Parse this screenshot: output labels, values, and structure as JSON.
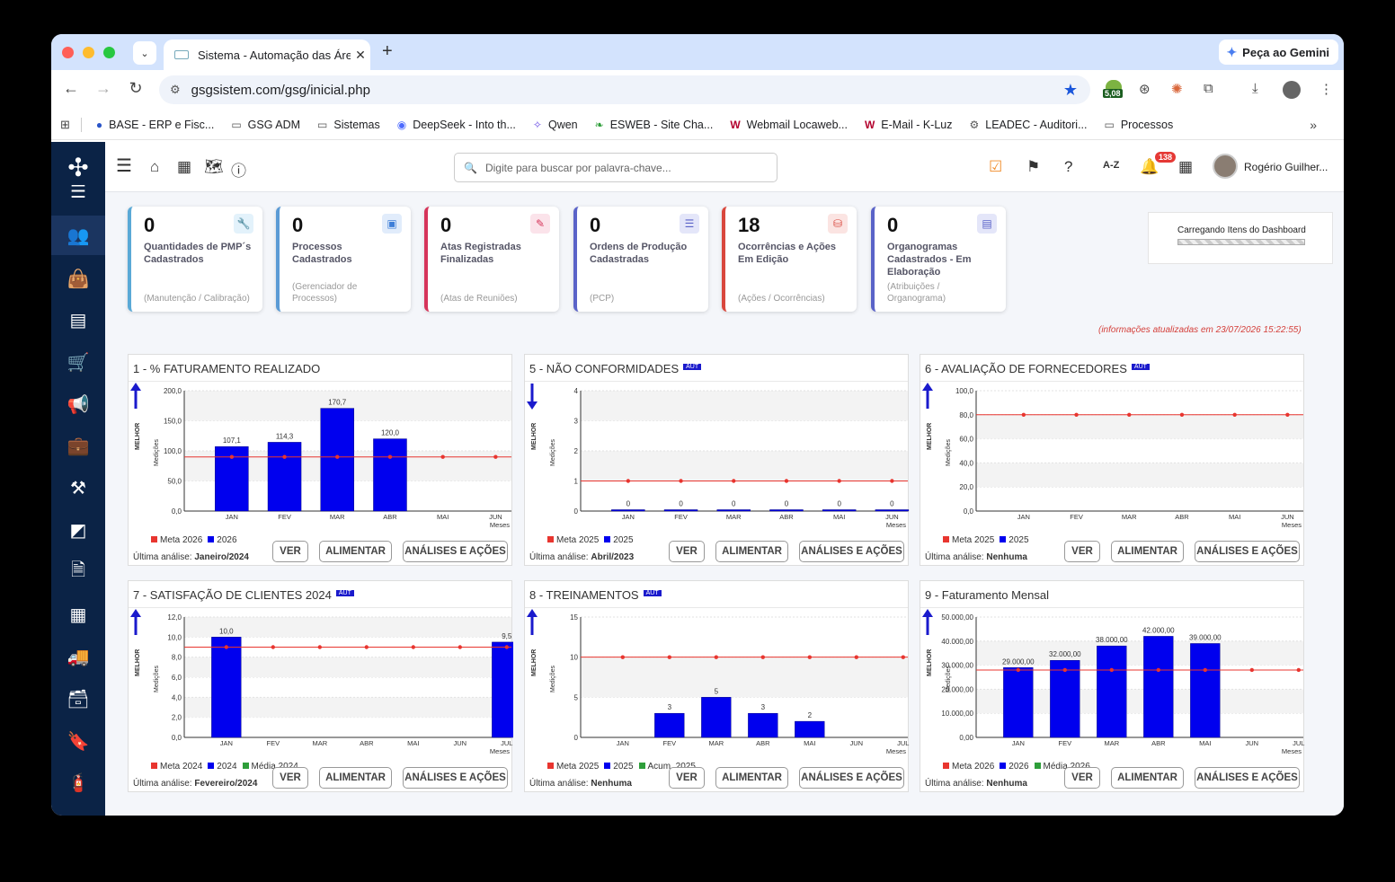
{
  "browser": {
    "tab_title": "Sistema - Automação das Áre",
    "tab_close": "✕",
    "new_tab": "+",
    "gemini_label": "Peça ao Gemini",
    "url": "gsgsistem.com/gsg/inicial.php",
    "ext_badge": "5,08",
    "bookmarks": [
      {
        "label": "BASE - ERP e Fisc...",
        "icon": "base-icon"
      },
      {
        "label": "GSG ADM",
        "icon": "folder-icon"
      },
      {
        "label": "Sistemas",
        "icon": "folder-icon"
      },
      {
        "label": "DeepSeek - Into th...",
        "icon": "deepseek-icon"
      },
      {
        "label": "Qwen",
        "icon": "qwen-icon"
      },
      {
        "label": "ESWEB - Site Cha...",
        "icon": "esweb-icon"
      },
      {
        "label": "Webmail Locaweb...",
        "icon": "w-icon"
      },
      {
        "label": "E-Mail - K-Luz",
        "icon": "w-icon"
      },
      {
        "label": "LEADEC - Auditori...",
        "icon": "gear-icon"
      },
      {
        "label": "Processos",
        "icon": "folder-icon"
      }
    ]
  },
  "header": {
    "search_placeholder": "Digite para buscar por palavra-chave...",
    "az_label": "A-Z",
    "notifications_count": "138",
    "user_name": "Rogério Guilher..."
  },
  "cards": [
    {
      "value": "0",
      "label": "Quantidades de PMP´s Cadastrados",
      "sub": "(Manutenção / Calibração)",
      "color": "#5aa9d6",
      "icon": "wrench-icon",
      "icon_bg": "#e3f2fb",
      "icon_fg": "#4a9fd4"
    },
    {
      "value": "0",
      "label": "Processos Cadastrados",
      "sub": "(Gerenciador de Processos)",
      "color": "#5b9bd5",
      "icon": "archive-icon",
      "icon_bg": "#e1ecfb",
      "icon_fg": "#3f7fd8"
    },
    {
      "value": "0",
      "label": "Atas Registradas Finalizadas",
      "sub": "(Atas de Reuniões)",
      "color": "#d6345a",
      "icon": "edit-icon",
      "icon_bg": "#fbe3ea",
      "icon_fg": "#d6345a"
    },
    {
      "value": "0",
      "label": "Ordens de Produção Cadastradas",
      "sub": "(PCP)",
      "color": "#5a63c8",
      "icon": "database-icon",
      "icon_bg": "#e4e6f9",
      "icon_fg": "#5a63c8"
    },
    {
      "value": "18",
      "label": "Ocorrências e Ações Em Edição",
      "sub": "(Ações / Ocorrências)",
      "color": "#d9473d",
      "icon": "boxes-icon",
      "icon_bg": "#fbe4e2",
      "icon_fg": "#d9473d"
    },
    {
      "value": "0",
      "label": "Organogramas Cadastrados - Em Elaboração",
      "sub": "(Atribuições / Organograma)",
      "color": "#5a63c8",
      "icon": "id-card-icon",
      "icon_bg": "#e4e6f9",
      "icon_fg": "#5a63c8"
    }
  ],
  "loading_text": "Carregando Itens do Dashboard",
  "updated_text": "(informações atualizadas em 23/07/2026 15:22:55)",
  "buttons": {
    "ver": "VER",
    "alimentar": "ALIMENTAR",
    "analises": "ANÁLISES E AÇÕES"
  },
  "legend_words": {
    "best": "MELHOR",
    "measures": "Medições",
    "months": "Meses"
  },
  "panels": [
    {
      "title": "1 - % FATURAMENTO REALIZADO",
      "aut": "",
      "arrow": "up",
      "legend": [
        "Meta 2026",
        "2026"
      ],
      "last_label": "Última análise:",
      "last_value": "Janeiro/2024"
    },
    {
      "title": "5 - NÃO CONFORMIDADES",
      "aut": "AUT",
      "arrow": "down",
      "legend": [
        "Meta 2025",
        "2025"
      ],
      "last_label": "Última análise:",
      "last_value": "Abril/2023"
    },
    {
      "title": "6 - AVALIAÇÃO DE FORNECEDORES",
      "aut": "AUT",
      "arrow": "up",
      "legend": [
        "Meta 2025",
        "2025"
      ],
      "last_label": "Última análise:",
      "last_value": "Nenhuma"
    },
    {
      "title": "7 - SATISFAÇÃO DE CLIENTES 2024",
      "aut": "AUT",
      "arrow": "up",
      "legend": [
        "Meta 2024",
        "2024",
        "Média 2024"
      ],
      "last_label": "Última análise:",
      "last_value": "Fevereiro/2024"
    },
    {
      "title": "8 - TREINAMENTOS",
      "aut": "AUT",
      "arrow": "up",
      "legend": [
        "Meta 2025",
        "2025",
        "Acum. 2025"
      ],
      "last_label": "Última análise:",
      "last_value": "Nenhuma"
    },
    {
      "title": "9 - Faturamento Mensal",
      "aut": "",
      "arrow": "up",
      "legend": [
        "Meta 2026",
        "2026",
        "Média 2026"
      ],
      "last_label": "Última análise:",
      "last_value": "Nenhuma"
    }
  ],
  "chart_data": [
    {
      "type": "bar",
      "categories": [
        "JAN",
        "FEV",
        "MAR",
        "ABR",
        "MAI",
        "JUN"
      ],
      "xlabel": "Meses",
      "ylabel": "Medições",
      "ylim": [
        0,
        200
      ],
      "yticks": [
        "0,0",
        "50,0",
        "100,0",
        "150,0",
        "200,0"
      ],
      "series": [
        {
          "name": "2026",
          "values": [
            107.1,
            114.3,
            170.7,
            120.0,
            null,
            null
          ],
          "labels": [
            "107,1",
            "114,3",
            "170,7",
            "120,0",
            "",
            ""
          ]
        }
      ],
      "meta": 90,
      "grid": true
    },
    {
      "type": "bar",
      "categories": [
        "JAN",
        "FEV",
        "MAR",
        "ABR",
        "MAI",
        "JUN"
      ],
      "xlabel": "Meses",
      "ylabel": "Medições",
      "ylim": [
        0,
        4
      ],
      "yticks": [
        "0",
        "1",
        "2",
        "3",
        "4"
      ],
      "series": [
        {
          "name": "2025",
          "values": [
            0,
            0,
            0,
            0,
            0,
            0
          ],
          "labels": [
            "0",
            "0",
            "0",
            "0",
            "0",
            "0"
          ]
        }
      ],
      "meta": 1,
      "grid": true
    },
    {
      "type": "bar",
      "categories": [
        "JAN",
        "FEV",
        "MAR",
        "ABR",
        "MAI",
        "JUN"
      ],
      "xlabel": "Meses",
      "ylabel": "Medições",
      "ylim": [
        0,
        100
      ],
      "yticks": [
        "0,0",
        "20,0",
        "40,0",
        "60,0",
        "80,0",
        "100,0"
      ],
      "series": [
        {
          "name": "2025",
          "values": [
            null,
            null,
            null,
            null,
            null,
            null
          ],
          "labels": [
            "",
            "",
            "",
            "",
            "",
            ""
          ]
        }
      ],
      "meta": 80,
      "grid": true
    },
    {
      "type": "bar",
      "categories": [
        "JAN",
        "FEV",
        "MAR",
        "ABR",
        "MAI",
        "JUN",
        "JUL"
      ],
      "xlabel": "Meses",
      "ylabel": "Medições",
      "ylim": [
        0,
        12
      ],
      "yticks": [
        "0,0",
        "2,0",
        "4,0",
        "6,0",
        "8,0",
        "10,0",
        "12,0"
      ],
      "series": [
        {
          "name": "2024",
          "values": [
            10.0,
            null,
            null,
            null,
            null,
            null,
            9.5
          ],
          "labels": [
            "10,0",
            "",
            "",
            "",
            "",
            "",
            "9,5"
          ]
        }
      ],
      "meta": 9,
      "grid": true
    },
    {
      "type": "bar",
      "categories": [
        "JAN",
        "FEV",
        "MAR",
        "ABR",
        "MAI",
        "JUN",
        "JUL"
      ],
      "xlabel": "Meses",
      "ylabel": "Medições",
      "ylim": [
        0,
        15
      ],
      "yticks": [
        "0",
        "5",
        "10",
        "15"
      ],
      "series": [
        {
          "name": "2025",
          "values": [
            null,
            3,
            5,
            3,
            2,
            null,
            null
          ],
          "labels": [
            "",
            "3",
            "5",
            "3",
            "2",
            "",
            ""
          ]
        }
      ],
      "meta": 10,
      "grid": true
    },
    {
      "type": "bar",
      "categories": [
        "JAN",
        "FEV",
        "MAR",
        "ABR",
        "MAI",
        "JUN",
        "JUL"
      ],
      "xlabel": "Meses",
      "ylabel": "Medições",
      "ylim": [
        0,
        50000
      ],
      "yticks": [
        "0,00",
        "10.000,00",
        "20.000,00",
        "30.000,00",
        "40.000,00",
        "50.000,00"
      ],
      "series": [
        {
          "name": "2026",
          "values": [
            29000,
            32000,
            38000,
            42000,
            39000,
            null,
            null
          ],
          "labels": [
            "29.000,00",
            "32.000,00",
            "38.000,00",
            "42.000,00",
            "39.000,00",
            "",
            ""
          ]
        }
      ],
      "meta": 28000,
      "grid": true
    }
  ],
  "colors": {
    "bar": "#0000ee",
    "meta": "#e8352f",
    "media": "#2e9e3a",
    "aut": "#1a1acc",
    "sidebar": "#0b2346",
    "arrow": "#1a1acc"
  }
}
